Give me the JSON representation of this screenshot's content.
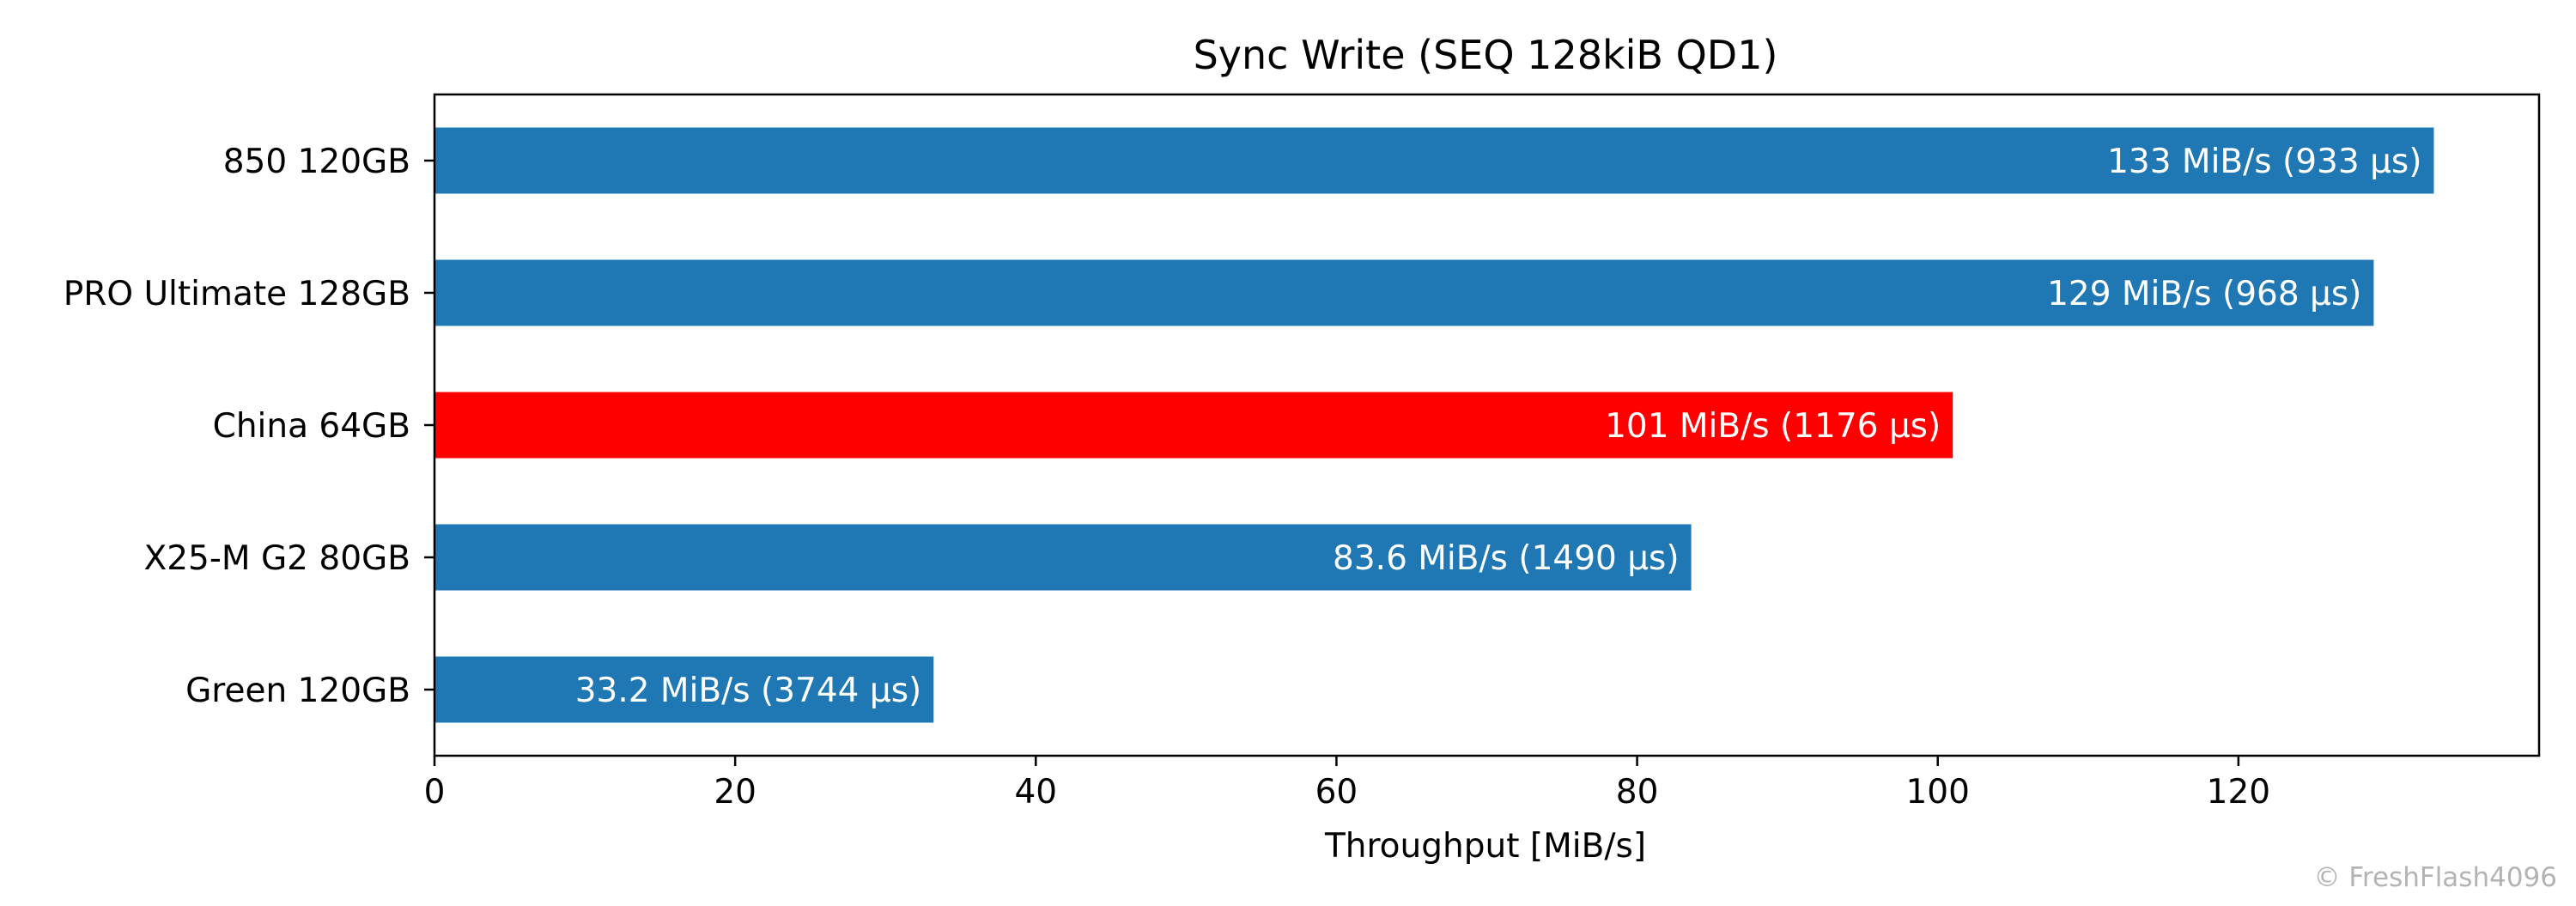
{
  "chart_data": {
    "type": "bar",
    "orientation": "horizontal",
    "title": "Sync Write (SEQ 128kiB QD1)",
    "xlabel": "Throughput [MiB/s]",
    "ylabel": "",
    "xlim": [
      0,
      140
    ],
    "xticks": [
      0,
      20,
      40,
      60,
      80,
      100,
      120
    ],
    "grid": false,
    "categories": [
      "850 120GB",
      "PRO Ultimate 128GB",
      "China 64GB",
      "X25-M G2 80GB",
      "Green 120GB"
    ],
    "values": [
      133,
      129,
      101,
      83.6,
      33.2
    ],
    "data_labels": [
      "133 MiB/s (933 µs)",
      "129 MiB/s (968 µs)",
      "101 MiB/s (1176 µs)",
      "83.6 MiB/s (1490 µs)",
      "33.2 MiB/s (3744 µs)"
    ],
    "bar_colors": [
      "#1f77b4",
      "#1f77b4",
      "#ff0000",
      "#1f77b4",
      "#1f77b4"
    ]
  },
  "watermark": "© FreshFlash4096"
}
